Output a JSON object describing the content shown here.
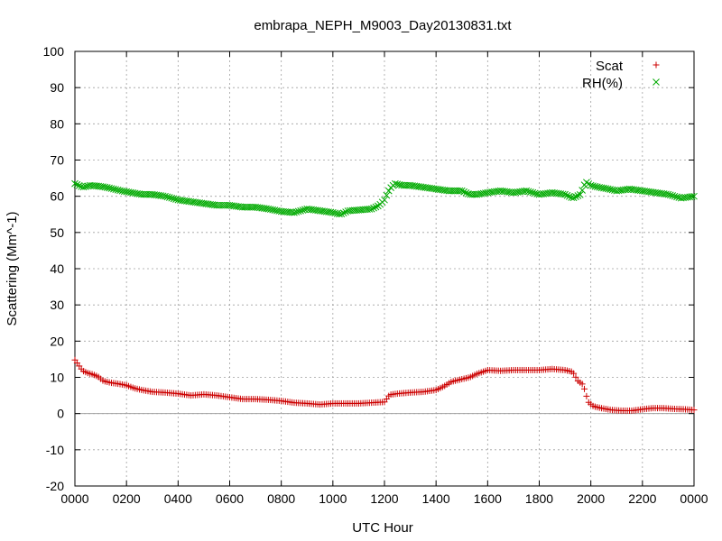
{
  "chart_data": {
    "type": "scatter",
    "title": "embrapa_NEPH_M9003_Day20130831.txt",
    "xlabel": "UTC Hour",
    "ylabel": "Scattering (Mm^-1)",
    "xlim": [
      0,
      24
    ],
    "ylim": [
      -20,
      100
    ],
    "x_ticks": [
      0,
      2,
      4,
      6,
      8,
      10,
      12,
      14,
      16,
      18,
      20,
      22,
      24
    ],
    "x_tick_labels": [
      "0000",
      "0200",
      "0400",
      "0600",
      "0800",
      "1000",
      "1200",
      "1400",
      "1600",
      "1800",
      "2000",
      "2200",
      "0000"
    ],
    "y_ticks": [
      -20,
      -10,
      0,
      10,
      20,
      30,
      40,
      50,
      60,
      70,
      80,
      90,
      100
    ],
    "y_tick_labels": [
      "-20",
      "-10",
      "0",
      "10",
      "20",
      "30",
      "40",
      "50",
      "60",
      "70",
      "80",
      "90",
      "100"
    ],
    "grid": true,
    "zero_line": true,
    "legend_position": "top-right",
    "series": [
      {
        "name": "Scat",
        "marker": "plus",
        "color": "#cc0000",
        "points": [
          [
            0.0,
            14.8
          ],
          [
            0.3,
            11.8
          ],
          [
            0.5,
            11.2
          ],
          [
            0.7,
            10.8
          ],
          [
            0.9,
            10.2
          ],
          [
            1.1,
            9.0
          ],
          [
            1.4,
            8.5
          ],
          [
            1.7,
            8.2
          ],
          [
            2.0,
            7.8
          ],
          [
            2.3,
            7.0
          ],
          [
            2.6,
            6.5
          ],
          [
            3.0,
            6.0
          ],
          [
            3.5,
            5.8
          ],
          [
            4.0,
            5.5
          ],
          [
            4.5,
            5.0
          ],
          [
            5.0,
            5.3
          ],
          [
            5.5,
            5.0
          ],
          [
            6.0,
            4.5
          ],
          [
            6.5,
            4.0
          ],
          [
            7.0,
            4.0
          ],
          [
            7.5,
            3.8
          ],
          [
            8.0,
            3.5
          ],
          [
            8.5,
            3.0
          ],
          [
            9.0,
            2.8
          ],
          [
            9.5,
            2.5
          ],
          [
            10.0,
            2.8
          ],
          [
            10.5,
            2.8
          ],
          [
            11.0,
            2.8
          ],
          [
            11.5,
            3.0
          ],
          [
            12.0,
            3.2
          ],
          [
            12.2,
            5.2
          ],
          [
            12.5,
            5.5
          ],
          [
            13.0,
            5.8
          ],
          [
            13.5,
            6.0
          ],
          [
            14.0,
            6.5
          ],
          [
            14.3,
            7.5
          ],
          [
            14.6,
            8.8
          ],
          [
            15.0,
            9.5
          ],
          [
            15.3,
            10.0
          ],
          [
            15.6,
            11.0
          ],
          [
            16.0,
            12.0
          ],
          [
            16.5,
            11.8
          ],
          [
            17.0,
            12.0
          ],
          [
            17.5,
            12.0
          ],
          [
            18.0,
            12.0
          ],
          [
            18.5,
            12.3
          ],
          [
            19.0,
            12.0
          ],
          [
            19.3,
            11.5
          ],
          [
            19.5,
            9.0
          ],
          [
            19.7,
            8.0
          ],
          [
            19.9,
            3.2
          ],
          [
            20.1,
            2.0
          ],
          [
            20.4,
            1.5
          ],
          [
            20.8,
            1.0
          ],
          [
            21.2,
            0.8
          ],
          [
            21.6,
            0.8
          ],
          [
            22.0,
            1.2
          ],
          [
            22.4,
            1.5
          ],
          [
            22.8,
            1.5
          ],
          [
            23.2,
            1.3
          ],
          [
            23.6,
            1.2
          ],
          [
            24.0,
            1.0
          ]
        ]
      },
      {
        "name": "RH(%)",
        "marker": "cross",
        "color": "#00aa00",
        "points": [
          [
            0.0,
            63.5
          ],
          [
            0.3,
            62.5
          ],
          [
            0.6,
            63.0
          ],
          [
            0.9,
            62.8
          ],
          [
            1.2,
            62.5
          ],
          [
            1.5,
            62.0
          ],
          [
            1.8,
            61.5
          ],
          [
            2.2,
            61.0
          ],
          [
            2.6,
            60.5
          ],
          [
            3.0,
            60.5
          ],
          [
            3.5,
            60.0
          ],
          [
            4.0,
            59.0
          ],
          [
            4.5,
            58.5
          ],
          [
            5.0,
            58.0
          ],
          [
            5.5,
            57.5
          ],
          [
            6.0,
            57.5
          ],
          [
            6.5,
            57.0
          ],
          [
            7.0,
            57.0
          ],
          [
            7.5,
            56.5
          ],
          [
            8.0,
            55.8
          ],
          [
            8.5,
            55.5
          ],
          [
            9.0,
            56.5
          ],
          [
            9.5,
            56.0
          ],
          [
            10.0,
            55.5
          ],
          [
            10.3,
            55.0
          ],
          [
            10.6,
            56.0
          ],
          [
            11.0,
            56.2
          ],
          [
            11.5,
            56.5
          ],
          [
            11.8,
            57.5
          ],
          [
            12.0,
            59.0
          ],
          [
            12.2,
            62.0
          ],
          [
            12.4,
            63.5
          ],
          [
            12.7,
            63.0
          ],
          [
            13.0,
            63.0
          ],
          [
            13.5,
            62.5
          ],
          [
            14.0,
            62.0
          ],
          [
            14.5,
            61.5
          ],
          [
            15.0,
            61.5
          ],
          [
            15.3,
            60.5
          ],
          [
            15.6,
            60.5
          ],
          [
            16.0,
            61.0
          ],
          [
            16.5,
            61.5
          ],
          [
            17.0,
            61.0
          ],
          [
            17.5,
            61.5
          ],
          [
            18.0,
            60.5
          ],
          [
            18.5,
            61.0
          ],
          [
            19.0,
            60.5
          ],
          [
            19.3,
            59.5
          ],
          [
            19.6,
            60.5
          ],
          [
            19.8,
            64.0
          ],
          [
            20.0,
            63.0
          ],
          [
            20.3,
            62.5
          ],
          [
            20.7,
            62.0
          ],
          [
            21.0,
            61.5
          ],
          [
            21.5,
            62.0
          ],
          [
            22.0,
            61.5
          ],
          [
            22.5,
            61.0
          ],
          [
            23.0,
            60.5
          ],
          [
            23.5,
            59.5
          ],
          [
            24.0,
            60.0
          ]
        ]
      }
    ]
  }
}
